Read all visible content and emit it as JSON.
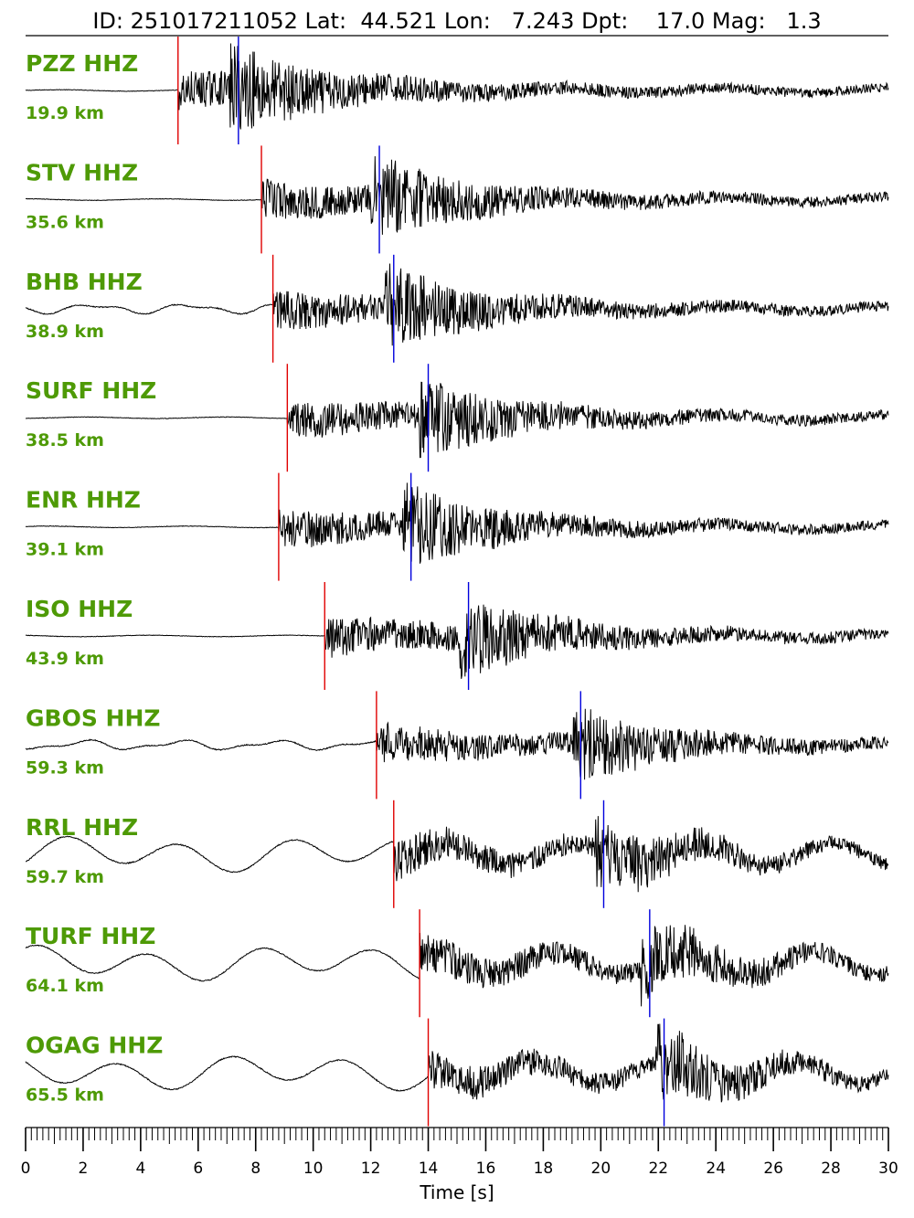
{
  "header": {
    "title": "ID: 251017211052 Lat:  44.521 Lon:   7.243 Dpt:    17.0 Mag:   1.3"
  },
  "colors": {
    "label": "#4e9a06",
    "p_pick": "#e00000",
    "s_pick": "#0000dd",
    "trace": "#000000"
  },
  "chart_data": {
    "type": "line",
    "title": "ID: 251017211052 Lat:  44.521 Lon:   7.243 Dpt:    17.0 Mag:   1.3",
    "xlabel": "Time [s]",
    "ylabel": "",
    "xlim": [
      0,
      30
    ],
    "x_ticks": [
      0,
      2,
      4,
      6,
      8,
      10,
      12,
      14,
      16,
      18,
      20,
      22,
      24,
      26,
      28,
      30
    ],
    "grid": false,
    "legend": "none",
    "series": [
      {
        "name": "PZZ HHZ",
        "distance": "19.9 km",
        "p_time": 5.3,
        "s_time": 7.4,
        "noise": "flat"
      },
      {
        "name": "STV HHZ",
        "distance": "35.6 km",
        "p_time": 8.2,
        "s_time": 12.3,
        "noise": "flat"
      },
      {
        "name": "BHB HHZ",
        "distance": "38.9 km",
        "p_time": 8.6,
        "s_time": 12.8,
        "noise": "gentle"
      },
      {
        "name": "SURF HHZ",
        "distance": "38.5 km",
        "p_time": 9.1,
        "s_time": 14.0,
        "noise": "flat"
      },
      {
        "name": "ENR HHZ",
        "distance": "39.1 km",
        "p_time": 8.8,
        "s_time": 13.4,
        "noise": "flat"
      },
      {
        "name": "ISO HHZ",
        "distance": "43.9 km",
        "p_time": 10.4,
        "s_time": 15.4,
        "noise": "flat"
      },
      {
        "name": "GBOS HHZ",
        "distance": "59.3 km",
        "p_time": 12.2,
        "s_time": 19.3,
        "noise": "gentle"
      },
      {
        "name": "RRL HHZ",
        "distance": "59.7 km",
        "p_time": 12.8,
        "s_time": 20.1,
        "noise": "wavy"
      },
      {
        "name": "TURF HHZ",
        "distance": "64.1 km",
        "p_time": 13.7,
        "s_time": 21.7,
        "noise": "wavy"
      },
      {
        "name": "OGAG HHZ",
        "distance": "65.5 km",
        "p_time": 14.0,
        "s_time": 22.2,
        "noise": "wavy"
      }
    ]
  }
}
